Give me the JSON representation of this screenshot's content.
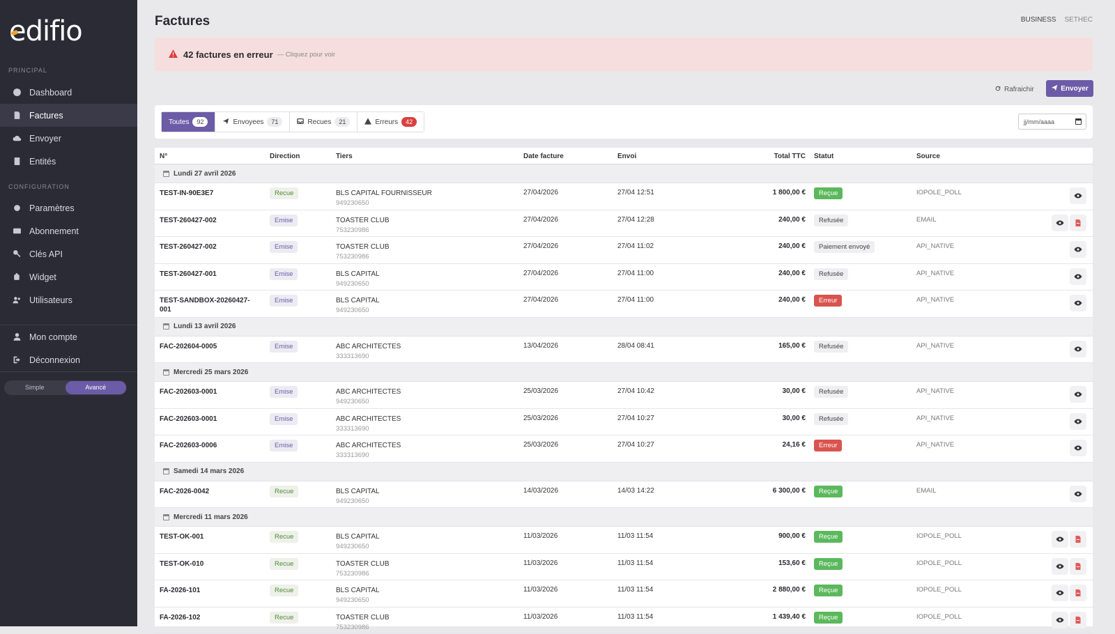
{
  "sidebar": {
    "logo": "edifio",
    "section_principal": "PRINCIPAL",
    "section_config": "CONFIGURATION",
    "items": [
      {
        "label": "Dashboard",
        "icon": "dashboard-icon"
      },
      {
        "label": "Factures",
        "icon": "invoice-icon"
      },
      {
        "label": "Envoyer",
        "icon": "cloud-upload-icon"
      },
      {
        "label": "Entités",
        "icon": "building-icon"
      },
      {
        "label": "Paramètres",
        "icon": "gear-icon"
      },
      {
        "label": "Abonnement",
        "icon": "credit-card-icon"
      },
      {
        "label": "Clés API",
        "icon": "key-icon"
      },
      {
        "label": "Widget",
        "icon": "puzzle-icon"
      },
      {
        "label": "Utilisateurs",
        "icon": "users-icon"
      },
      {
        "label": "Mon compte",
        "icon": "user-icon"
      },
      {
        "label": "Déconnexion",
        "icon": "logout-icon"
      }
    ],
    "mode_simple": "Simple",
    "mode_avance": "Avancé"
  },
  "header": {
    "title": "Factures",
    "plan": "BUSINESS",
    "company": "SETHEC"
  },
  "alert": {
    "title": "42 factures en erreur",
    "subtitle": "— Cliquez pour voir"
  },
  "toolbar": {
    "refresh_label": "Rafraichir",
    "send_label": "Envoyer"
  },
  "tabs": [
    {
      "label": "Toutes",
      "count": "92"
    },
    {
      "label": "Envoyees",
      "count": "71"
    },
    {
      "label": "Recues",
      "count": "21"
    },
    {
      "label": "Erreurs",
      "count": "42"
    }
  ],
  "date_filter": {
    "placeholder": "jj/mm/aaaa"
  },
  "columns": {
    "num": "N°",
    "direction": "Direction",
    "tiers": "Tiers",
    "date": "Date facture",
    "envoi": "Envoi",
    "total": "Total TTC",
    "statut": "Statut",
    "source": "Source"
  },
  "groups": [
    {
      "label": "Lundi 27 avril 2026",
      "rows": [
        {
          "num": "TEST-IN-90E3E7",
          "direction": "Recue",
          "tiers": "BLS CAPITAL FOURNISSEUR",
          "siren": "949230650",
          "date": "27/04/2026",
          "envoi": "27/04 12:51",
          "total": "1 800,00 €",
          "statut": "Reçue",
          "source": "IOPOLE_POLL",
          "pdf": false
        },
        {
          "num": "TEST-260427-002",
          "direction": "Emise",
          "tiers": "TOASTER CLUB",
          "siren": "753230986",
          "date": "27/04/2026",
          "envoi": "27/04 12:28",
          "total": "240,00 €",
          "statut": "Refusée",
          "source": "EMAIL",
          "pdf": true
        },
        {
          "num": "TEST-260427-002",
          "direction": "Emise",
          "tiers": "TOASTER CLUB",
          "siren": "753230986",
          "date": "27/04/2026",
          "envoi": "27/04 11:02",
          "total": "240,00 €",
          "statut": "Paiement envoyé",
          "source": "API_NATIVE",
          "pdf": false
        },
        {
          "num": "TEST-260427-001",
          "direction": "Emise",
          "tiers": "BLS CAPITAL",
          "siren": "949230650",
          "date": "27/04/2026",
          "envoi": "27/04 11:00",
          "total": "240,00 €",
          "statut": "Refusée",
          "source": "API_NATIVE",
          "pdf": false
        },
        {
          "num": "TEST-SANDBOX-20260427-001",
          "direction": "Emise",
          "tiers": "BLS CAPITAL",
          "siren": "949230650",
          "date": "27/04/2026",
          "envoi": "27/04 11:00",
          "total": "240,00 €",
          "statut": "Erreur",
          "source": "API_NATIVE",
          "pdf": false
        }
      ]
    },
    {
      "label": "Lundi 13 avril 2026",
      "rows": [
        {
          "num": "FAC-202604-0005",
          "direction": "Emise",
          "tiers": "ABC ARCHITECTES",
          "siren": "333313690",
          "date": "13/04/2026",
          "envoi": "28/04 08:41",
          "total": "165,00 €",
          "statut": "Refusée",
          "source": "API_NATIVE",
          "pdf": false
        }
      ]
    },
    {
      "label": "Mercredi 25 mars 2026",
      "rows": [
        {
          "num": "FAC-202603-0001",
          "direction": "Emise",
          "tiers": "ABC ARCHITECTES",
          "siren": "949230650",
          "date": "25/03/2026",
          "envoi": "27/04 10:42",
          "total": "30,00 €",
          "statut": "Refusée",
          "source": "API_NATIVE",
          "pdf": false
        },
        {
          "num": "FAC-202603-0001",
          "direction": "Emise",
          "tiers": "ABC ARCHITECTES",
          "siren": "333313690",
          "date": "25/03/2026",
          "envoi": "27/04 10:27",
          "total": "30,00 €",
          "statut": "Refusée",
          "source": "API_NATIVE",
          "pdf": false
        },
        {
          "num": "FAC-202603-0006",
          "direction": "Emise",
          "tiers": "ABC ARCHITECTES",
          "siren": "333313690",
          "date": "25/03/2026",
          "envoi": "27/04 10:27",
          "total": "24,16 €",
          "statut": "Erreur",
          "source": "API_NATIVE",
          "pdf": false
        }
      ]
    },
    {
      "label": "Samedi 14 mars 2026",
      "rows": [
        {
          "num": "FAC-2026-0042",
          "direction": "Recue",
          "tiers": "BLS CAPITAL",
          "siren": "949230650",
          "date": "14/03/2026",
          "envoi": "14/03 14:22",
          "total": "6 300,00 €",
          "statut": "Reçue",
          "source": "EMAIL",
          "pdf": false
        }
      ]
    },
    {
      "label": "Mercredi 11 mars 2026",
      "rows": [
        {
          "num": "TEST-OK-001",
          "direction": "Recue",
          "tiers": "BLS CAPITAL",
          "siren": "949230650",
          "date": "11/03/2026",
          "envoi": "11/03 11:54",
          "total": "900,00 €",
          "statut": "Reçue",
          "source": "IOPOLE_POLL",
          "pdf": true
        },
        {
          "num": "TEST-OK-010",
          "direction": "Recue",
          "tiers": "TOASTER CLUB",
          "siren": "753230986",
          "date": "11/03/2026",
          "envoi": "11/03 11:54",
          "total": "153,60 €",
          "statut": "Reçue",
          "source": "IOPOLE_POLL",
          "pdf": true
        },
        {
          "num": "FA-2026-101",
          "direction": "Recue",
          "tiers": "BLS CAPITAL",
          "siren": "949230650",
          "date": "11/03/2026",
          "envoi": "11/03 11:54",
          "total": "2 880,00 €",
          "statut": "Reçue",
          "source": "IOPOLE_POLL",
          "pdf": true
        },
        {
          "num": "FA-2026-102",
          "direction": "Recue",
          "tiers": "TOASTER CLUB",
          "siren": "753230986",
          "date": "11/03/2026",
          "envoi": "11/03 11:54",
          "total": "1 439,40 €",
          "statut": "Reçue",
          "source": "IOPOLE_POLL",
          "pdf": true
        }
      ]
    }
  ],
  "colors": {
    "sidebar_bg": "#2b2b36",
    "accent": "#6c5ba7",
    "error": "#d9534f",
    "success": "#5cb85c",
    "alert_bg": "#f6dede"
  }
}
